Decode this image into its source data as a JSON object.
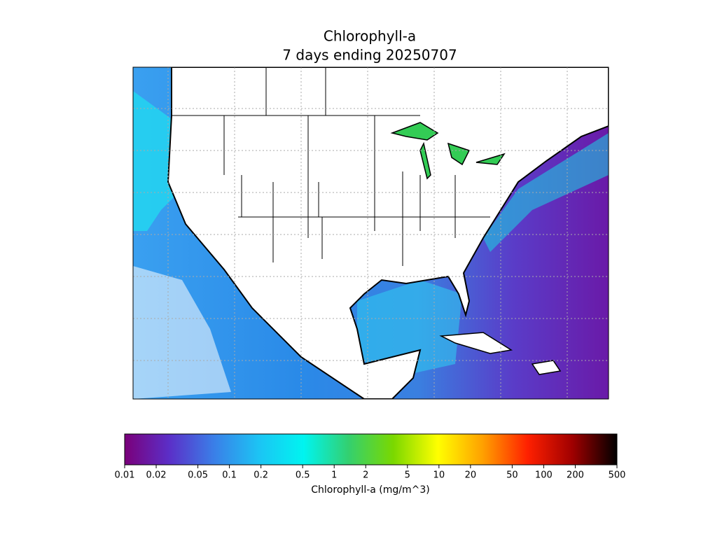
{
  "title": [
    "Chlorophyll-a",
    "7 days ending 20250707"
  ],
  "colorbar": {
    "label": "Chlorophyll-a (mg/m^3)",
    "log_scale": true,
    "lim": [
      0.01,
      500
    ],
    "ticks": [
      0.01,
      0.02,
      0.05,
      0.1,
      0.2,
      0.5,
      1,
      2,
      5,
      10,
      20,
      50,
      100,
      200,
      500
    ],
    "colors": [
      "#7a007a",
      "#5b2fc8",
      "#3a7fe8",
      "#1cc4f4",
      "#00f4f0",
      "#33d070",
      "#7ad800",
      "#ffff00",
      "#ffa000",
      "#ff2000",
      "#a00000",
      "#000000"
    ]
  }
}
